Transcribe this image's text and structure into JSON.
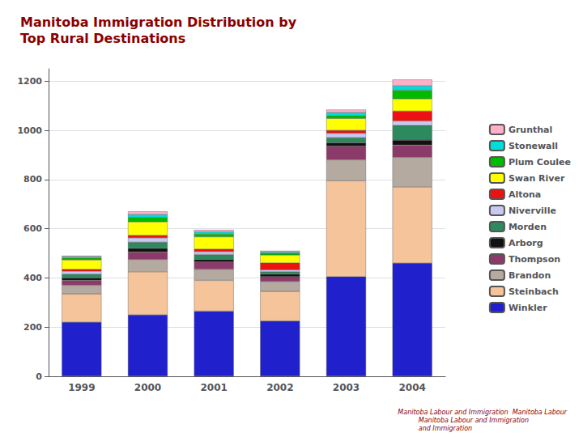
{
  "chart_data": {
    "type": "bar",
    "title": "Manitoba Immigration Distribution by\nTop Rural Destinations",
    "categories": [
      "1999",
      "2000",
      "2001",
      "2002",
      "2003",
      "2004"
    ],
    "stacked": true,
    "grid": true,
    "legend": "right",
    "ylim": [
      0,
      1250
    ],
    "yticks": [
      0,
      200,
      400,
      600,
      800,
      1000,
      1200
    ],
    "annotations": [
      "Manitoba Labour and Immigration  Manitoba Labour\n          Manitoba Labour and Immigration\n          and Immigration"
    ],
    "series": [
      {
        "name": "Winkler",
        "color": "#2020cc",
        "values": [
          220,
          250,
          265,
          225,
          405,
          460
        ]
      },
      {
        "name": "Steinbach",
        "color": "#f5c49a",
        "values": [
          115,
          175,
          125,
          120,
          390,
          310
        ]
      },
      {
        "name": "Brandon",
        "color": "#b5aaa0",
        "values": [
          35,
          50,
          45,
          40,
          85,
          120
        ]
      },
      {
        "name": "Thompson",
        "color": "#8B3A6A",
        "values": [
          20,
          30,
          30,
          20,
          55,
          50
        ]
      },
      {
        "name": "Arborg",
        "color": "#111111",
        "values": [
          10,
          15,
          10,
          10,
          15,
          20
        ]
      },
      {
        "name": "Morden",
        "color": "#2d8a5e",
        "values": [
          15,
          25,
          20,
          10,
          20,
          60
        ]
      },
      {
        "name": "Niverville",
        "color": "#c8c8f0",
        "values": [
          12,
          18,
          12,
          8,
          18,
          18
        ]
      },
      {
        "name": "Altona",
        "color": "#ee1111",
        "values": [
          8,
          10,
          10,
          28,
          12,
          40
        ]
      },
      {
        "name": "Swan River",
        "color": "#ffff00",
        "values": [
          38,
          55,
          50,
          32,
          48,
          50
        ]
      },
      {
        "name": "Plum Coulee",
        "color": "#00bb00",
        "values": [
          8,
          18,
          12,
          8,
          12,
          35
        ]
      },
      {
        "name": "Stonewall",
        "color": "#00dddd",
        "values": [
          5,
          12,
          8,
          5,
          12,
          18
        ]
      },
      {
        "name": "Grunthal",
        "color": "#ffb0c8",
        "values": [
          4,
          12,
          8,
          4,
          12,
          25
        ]
      }
    ]
  }
}
